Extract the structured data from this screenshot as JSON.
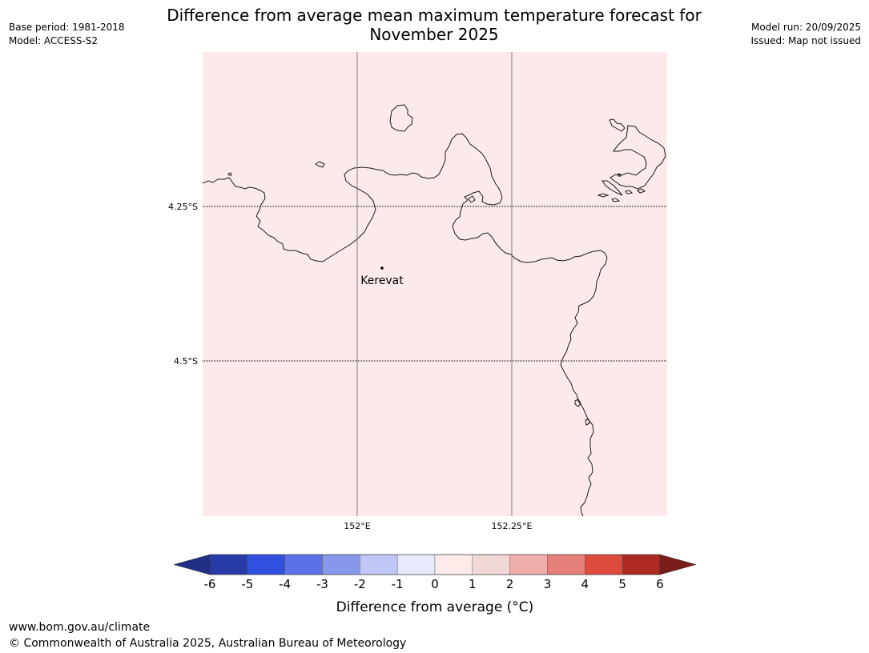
{
  "header": {
    "title_line1": "Difference from average mean maximum temperature forecast for",
    "title_line2": "November 2025",
    "base_period": "Base period: 1981-2018",
    "model": "Model: ACCESS-S2",
    "model_run": "Model run: 20/09/2025",
    "issued": "Issued: Map not issued"
  },
  "map": {
    "fill_color": "#fbeae9",
    "lat_labels": [
      "4.25°S",
      "4.5°S"
    ],
    "lon_labels": [
      "152°E",
      "152.25°E"
    ],
    "place": {
      "name": "Kerevat"
    }
  },
  "legend": {
    "ticks": [
      "-6",
      "-5",
      "-4",
      "-3",
      "-2",
      "-1",
      "0",
      "1",
      "2",
      "3",
      "4",
      "5",
      "6"
    ],
    "colors": [
      "#273aa8",
      "#3050e0",
      "#5a72e6",
      "#8798ec",
      "#c0c6f5",
      "#e8eafc",
      "#fcebe9",
      "#f1d8d6",
      "#eeaeaa",
      "#e5807b",
      "#dd4a3e",
      "#ac2a22"
    ],
    "low_color": "#202f85",
    "high_color": "#7a1d18",
    "label": "Difference from average (°C)"
  },
  "footer": {
    "website": "www.bom.gov.au/climate",
    "copyright": "© Commonwealth of Australia 2025, Australian Bureau of Meteorology"
  }
}
